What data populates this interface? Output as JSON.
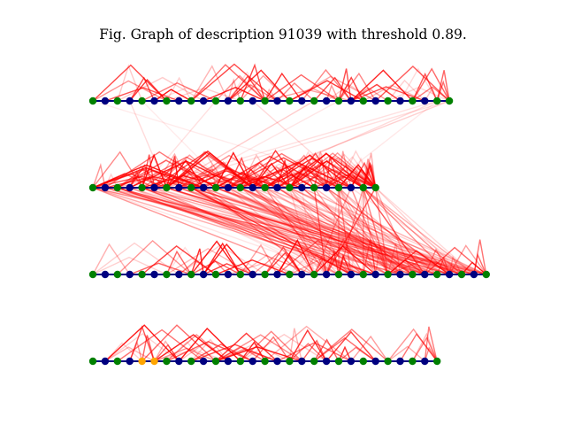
{
  "figure": {
    "title": "Fig. Graph of description 91039 with threshold 0.89."
  },
  "colors": {
    "background": "#ffffff",
    "edge": "#ff0000",
    "node_green": "#008000",
    "node_navy": "#000080",
    "node_orange": "#ffa500",
    "spine": "#000080"
  },
  "graph": {
    "rows": [
      {
        "name": "row-1",
        "node_count": 30,
        "orange_nodes": []
      },
      {
        "name": "row-2",
        "node_count": 24,
        "orange_nodes": []
      },
      {
        "name": "row-3",
        "node_count": 33,
        "orange_nodes": []
      },
      {
        "name": "row-4",
        "node_count": 29,
        "orange_nodes": [
          4,
          5
        ]
      }
    ]
  }
}
